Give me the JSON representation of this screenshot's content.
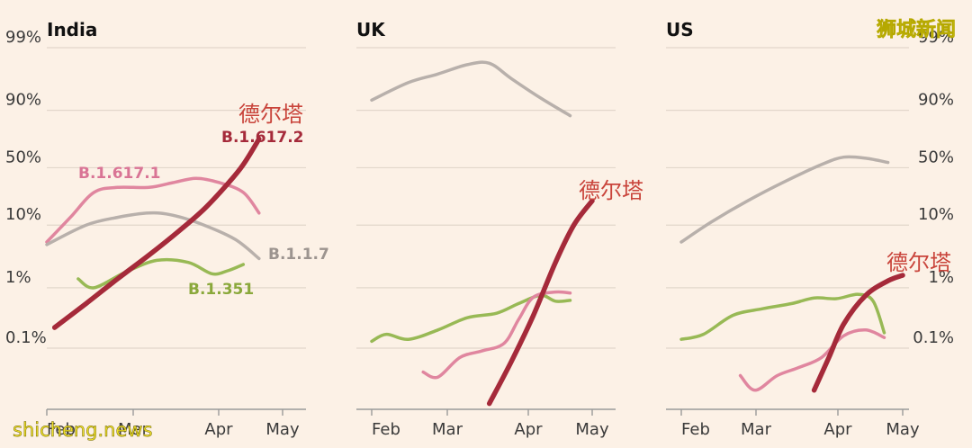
{
  "watermark_top": "狮城新闻",
  "watermark_bottom": "shicheng.news",
  "chart_data": [
    {
      "type": "line",
      "title": "India",
      "y_scale": "logit",
      "y_ticks": [
        0.1,
        1,
        10,
        50,
        90,
        99
      ],
      "y_tick_labels": [
        "0.1%",
        "1%",
        "10%",
        "50%",
        "90%",
        "99%"
      ],
      "x_ticks": [
        "Feb",
        "Mar",
        "Apr",
        "May"
      ],
      "ylim_percent": [
        0.02,
        99.5
      ],
      "series": [
        {
          "name": "B.1.617.1",
          "color": "#e0869f",
          "points": [
            [
              1.0,
              5.5
            ],
            [
              1.3,
              13
            ],
            [
              1.6,
              28
            ],
            [
              1.9,
              32
            ],
            [
              2.3,
              32
            ],
            [
              2.6,
              36
            ],
            [
              2.9,
              40
            ],
            [
              3.2,
              36
            ],
            [
              3.5,
              28
            ],
            [
              3.7,
              15
            ]
          ]
        },
        {
          "name": "B.1.1.7",
          "color": "#b8b0ab",
          "points": [
            [
              1.0,
              5
            ],
            [
              1.5,
              10
            ],
            [
              1.9,
              13
            ],
            [
              2.3,
              15
            ],
            [
              2.6,
              14
            ],
            [
              3.0,
              10
            ],
            [
              3.4,
              6
            ],
            [
              3.7,
              3
            ]
          ]
        },
        {
          "name": "B.1.351",
          "color": "#98b955",
          "points": [
            [
              1.4,
              1.4
            ],
            [
              1.6,
              1.0
            ],
            [
              2.0,
              1.8
            ],
            [
              2.4,
              2.8
            ],
            [
              2.8,
              2.6
            ],
            [
              3.1,
              1.7
            ],
            [
              3.3,
              1.9
            ],
            [
              3.5,
              2.4
            ]
          ]
        },
        {
          "name": "B.1.617.2",
          "label_zh": "德尔塔",
          "color": "#a52a3a",
          "points": [
            [
              1.1,
              0.22
            ],
            [
              1.5,
              0.55
            ],
            [
              1.9,
              1.4
            ],
            [
              2.3,
              3.4
            ],
            [
              2.7,
              8.5
            ],
            [
              3.0,
              17
            ],
            [
              3.3,
              35
            ],
            [
              3.5,
              53
            ],
            [
              3.7,
              75
            ]
          ]
        }
      ],
      "annotations": [
        "B.1.617.1",
        "B.1.1.7",
        "B.1.351",
        "B.1.617.2",
        "德尔塔"
      ]
    },
    {
      "type": "line",
      "title": "UK",
      "y_scale": "logit",
      "y_ticks": [
        0.1,
        1,
        10,
        50,
        90,
        99
      ],
      "x_ticks": [
        "Feb",
        "Mar",
        "Apr",
        "May"
      ],
      "ylim_percent": [
        0.02,
        99.5
      ],
      "series": [
        {
          "name": "B.1.1.7",
          "color": "#b8b0ab",
          "points": [
            [
              1.0,
              93
            ],
            [
              1.5,
              96.3
            ],
            [
              1.9,
              97.3
            ],
            [
              2.3,
              98.1
            ],
            [
              2.6,
              98.2
            ],
            [
              2.9,
              96.8
            ],
            [
              3.3,
              93.5
            ],
            [
              3.7,
              88
            ]
          ]
        },
        {
          "name": "B.1.351",
          "color": "#98b955",
          "points": [
            [
              1.0,
              0.13
            ],
            [
              1.2,
              0.17
            ],
            [
              1.5,
              0.14
            ],
            [
              1.9,
              0.2
            ],
            [
              2.3,
              0.32
            ],
            [
              2.7,
              0.38
            ],
            [
              3.0,
              0.55
            ],
            [
              3.3,
              0.75
            ],
            [
              3.5,
              0.6
            ],
            [
              3.7,
              0.62
            ]
          ]
        },
        {
          "name": "B.1.617.1",
          "color": "#e0869f",
          "points": [
            [
              1.7,
              0.04
            ],
            [
              1.9,
              0.033
            ],
            [
              2.2,
              0.07
            ],
            [
              2.5,
              0.09
            ],
            [
              2.8,
              0.12
            ],
            [
              3.0,
              0.3
            ],
            [
              3.2,
              0.7
            ],
            [
              3.5,
              0.85
            ],
            [
              3.7,
              0.82
            ]
          ]
        },
        {
          "name": "B.1.617.2",
          "label_zh": "德尔塔",
          "color": "#a52a3a",
          "points": [
            [
              2.6,
              0.012
            ],
            [
              2.9,
              0.06
            ],
            [
              3.2,
              0.35
            ],
            [
              3.5,
              2.6
            ],
            [
              3.75,
              10
            ],
            [
              4.0,
              22
            ]
          ]
        }
      ],
      "annotations": [
        "德尔塔"
      ]
    },
    {
      "type": "line",
      "title": "US",
      "y_scale": "logit",
      "y_ticks": [
        0.1,
        1,
        10,
        50,
        90,
        99
      ],
      "y_tick_labels": [
        "0.1%",
        "1%",
        "10%",
        "50%",
        "90%",
        "99%"
      ],
      "x_ticks": [
        "Feb",
        "Mar",
        "Apr",
        "May"
      ],
      "ylim_percent": [
        0.02,
        99.5
      ],
      "series": [
        {
          "name": "B.1.1.7",
          "color": "#b8b0ab",
          "points": [
            [
              1.0,
              5.5
            ],
            [
              1.4,
              11
            ],
            [
              1.9,
              22
            ],
            [
              2.4,
              37
            ],
            [
              2.9,
              53
            ],
            [
              3.2,
              60
            ],
            [
              3.5,
              59
            ],
            [
              3.8,
              55
            ]
          ]
        },
        {
          "name": "B.1.351",
          "color": "#98b955",
          "points": [
            [
              1.0,
              0.14
            ],
            [
              1.3,
              0.17
            ],
            [
              1.7,
              0.35
            ],
            [
              2.1,
              0.45
            ],
            [
              2.5,
              0.55
            ],
            [
              2.8,
              0.68
            ],
            [
              3.1,
              0.66
            ],
            [
              3.4,
              0.78
            ],
            [
              3.6,
              0.6
            ],
            [
              3.75,
              0.18
            ]
          ]
        },
        {
          "name": "B.1.617.1",
          "color": "#e0869f",
          "points": [
            [
              1.8,
              0.035
            ],
            [
              2.0,
              0.02
            ],
            [
              2.3,
              0.035
            ],
            [
              2.6,
              0.048
            ],
            [
              2.9,
              0.07
            ],
            [
              3.2,
              0.16
            ],
            [
              3.5,
              0.2
            ],
            [
              3.75,
              0.15
            ]
          ]
        },
        {
          "name": "B.1.617.2",
          "label_zh": "德尔塔",
          "color": "#a52a3a",
          "points": [
            [
              2.8,
              0.02
            ],
            [
              3.0,
              0.07
            ],
            [
              3.2,
              0.25
            ],
            [
              3.5,
              0.75
            ],
            [
              3.8,
              1.3
            ],
            [
              4.0,
              1.6
            ]
          ]
        }
      ],
      "annotations": [
        "德尔塔"
      ]
    }
  ]
}
